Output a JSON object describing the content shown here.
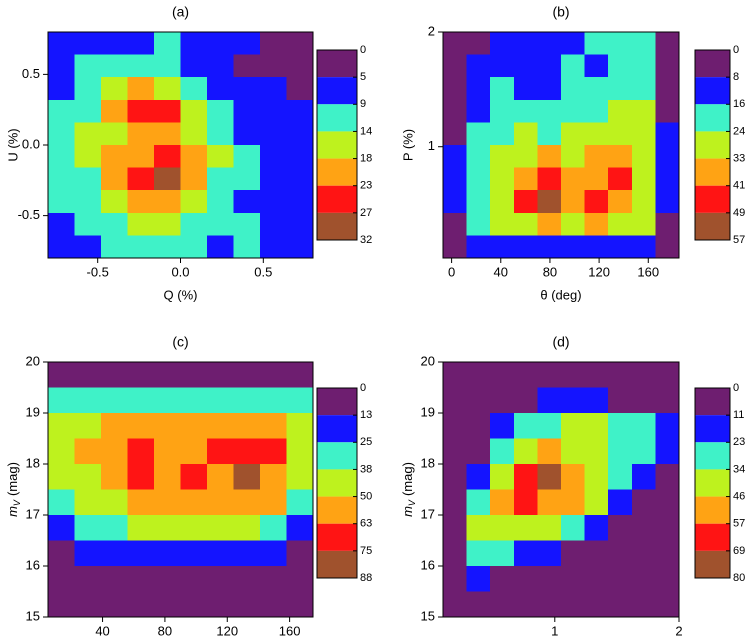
{
  "chart_data": [
    {
      "type": "contour",
      "title": "(a)",
      "x_label": "Q (%)",
      "y_label": "U (%)",
      "xlim": [
        -0.8,
        0.8
      ],
      "ylim": [
        -0.8,
        0.8
      ],
      "xticks": [
        -0.5,
        {
          "value": 0,
          "label": "0.0"
        },
        0.5
      ],
      "yticks": [
        -0.5,
        {
          "value": 0,
          "label": "0.0"
        },
        0.5
      ],
      "levels": [
        0,
        5,
        9,
        14,
        18,
        23,
        27,
        32
      ],
      "colors": [
        "#6e1e70",
        "#1414ff",
        "#3ff2c8",
        "#bef21e",
        "#ffa314",
        "#ff1414",
        "#a0522d"
      ],
      "z": [
        [
          7,
          8,
          7,
          8,
          10,
          7,
          6,
          6,
          2,
          2
        ],
        [
          8,
          10,
          12,
          13,
          10,
          8,
          6,
          4,
          3,
          2
        ],
        [
          8,
          11,
          15,
          19,
          16,
          12,
          8,
          7,
          5,
          3
        ],
        [
          9,
          13,
          19,
          24,
          23,
          15,
          10,
          8,
          7,
          5
        ],
        [
          10,
          14,
          17,
          20,
          19,
          15,
          11,
          8,
          7,
          6
        ],
        [
          10,
          14,
          19,
          22,
          25,
          20,
          14,
          9,
          7,
          6
        ],
        [
          9,
          13,
          18,
          23,
          28,
          20,
          13,
          9,
          7,
          6
        ],
        [
          9,
          12,
          15,
          19,
          19,
          16,
          11,
          8,
          7,
          6
        ],
        [
          7,
          10,
          12,
          14,
          15,
          13,
          11,
          10,
          8,
          6
        ],
        [
          6,
          8,
          9,
          10,
          10,
          9,
          8,
          11,
          8,
          6
        ]
      ]
    },
    {
      "type": "contour",
      "title": "(b)",
      "x_label": "θ (deg)",
      "y_label": "P (%)",
      "xlim": [
        -7,
        185
      ],
      "ylim": [
        0.03,
        2
      ],
      "xticks": [
        0,
        40,
        80,
        120,
        160
      ],
      "yticks": [
        1,
        2
      ],
      "levels": [
        0,
        8,
        16,
        24,
        33,
        41,
        49,
        57
      ],
      "colors": [
        "#6e1e70",
        "#1414ff",
        "#3ff2c8",
        "#bef21e",
        "#ffa314",
        "#ff1414",
        "#a0522d"
      ],
      "z": [
        [
          3,
          6,
          10,
          12,
          15,
          14,
          18,
          20,
          18,
          4
        ],
        [
          4,
          10,
          14,
          12,
          14,
          16,
          15,
          18,
          20,
          6
        ],
        [
          6,
          12,
          18,
          14,
          14,
          16,
          18,
          22,
          22,
          6
        ],
        [
          6,
          15,
          20,
          19,
          18,
          18,
          20,
          26,
          24,
          7
        ],
        [
          7,
          18,
          22,
          24,
          22,
          24,
          24,
          30,
          26,
          8
        ],
        [
          8,
          18,
          24,
          30,
          34,
          32,
          34,
          34,
          28,
          8
        ],
        [
          8,
          20,
          26,
          38,
          44,
          36,
          40,
          44,
          30,
          8
        ],
        [
          8,
          20,
          28,
          42,
          50,
          34,
          46,
          40,
          28,
          8
        ],
        [
          7,
          18,
          24,
          30,
          34,
          28,
          34,
          30,
          24,
          7
        ],
        [
          5,
          10,
          12,
          12,
          12,
          12,
          12,
          12,
          10,
          5
        ]
      ]
    },
    {
      "type": "contour",
      "title": "(c)",
      "x_label": "θ (deg)",
      "y_label_main": "m",
      "y_label_sub": "V",
      "y_label_rest": "(mag)",
      "xlim": [
        5,
        175
      ],
      "ylim": [
        15,
        20
      ],
      "xticks": [
        40,
        80,
        120,
        160
      ],
      "yticks": [
        15,
        16,
        17,
        18,
        19,
        20
      ],
      "levels": [
        0,
        13,
        25,
        38,
        50,
        63,
        75,
        88
      ],
      "colors": [
        "#6e1e70",
        "#1414ff",
        "#3ff2c8",
        "#bef21e",
        "#ffa314",
        "#ff1414",
        "#a0522d"
      ],
      "z": [
        [
          8,
          10,
          10,
          10,
          10,
          10,
          10,
          10,
          10,
          8
        ],
        [
          30,
          32,
          35,
          36,
          36,
          36,
          36,
          34,
          32,
          28
        ],
        [
          38,
          45,
          52,
          55,
          52,
          52,
          55,
          56,
          52,
          40
        ],
        [
          40,
          50,
          60,
          70,
          58,
          60,
          64,
          72,
          66,
          44
        ],
        [
          38,
          48,
          58,
          72,
          55,
          66,
          60,
          80,
          62,
          42
        ],
        [
          32,
          40,
          48,
          62,
          52,
          55,
          52,
          56,
          50,
          36
        ],
        [
          22,
          28,
          36,
          42,
          40,
          40,
          40,
          38,
          34,
          24
        ],
        [
          12,
          18,
          20,
          22,
          18,
          20,
          20,
          18,
          16,
          12
        ],
        [
          5,
          8,
          8,
          6,
          4,
          6,
          6,
          5,
          4,
          4
        ],
        [
          2,
          2,
          2,
          2,
          2,
          2,
          2,
          2,
          2,
          2
        ]
      ]
    },
    {
      "type": "contour",
      "title": "(d)",
      "x_label": "P (%)",
      "y_label_main": "m",
      "y_label_sub": "V",
      "y_label_rest": "(mag)",
      "xlim": [
        0.1,
        2
      ],
      "ylim": [
        15,
        20
      ],
      "xticks": [
        1,
        2
      ],
      "yticks": [
        15,
        16,
        17,
        18,
        19,
        20
      ],
      "levels": [
        0,
        11,
        23,
        34,
        46,
        57,
        69,
        80
      ],
      "colors": [
        "#6e1e70",
        "#1414ff",
        "#3ff2c8",
        "#bef21e",
        "#ffa314",
        "#ff1414",
        "#a0522d"
      ],
      "z": [
        [
          2,
          2,
          2,
          2,
          2,
          2,
          2,
          2,
          2,
          2
        ],
        [
          2,
          2,
          4,
          8,
          14,
          18,
          14,
          10,
          6,
          4
        ],
        [
          2,
          4,
          12,
          24,
          30,
          34,
          34,
          30,
          26,
          20
        ],
        [
          4,
          10,
          28,
          40,
          48,
          44,
          38,
          30,
          24,
          14
        ],
        [
          6,
          20,
          42,
          60,
          72,
          56,
          44,
          30,
          18,
          8
        ],
        [
          8,
          30,
          50,
          62,
          56,
          48,
          34,
          20,
          10,
          4
        ],
        [
          10,
          34,
          44,
          40,
          34,
          26,
          16,
          8,
          4,
          2
        ],
        [
          10,
          24,
          28,
          22,
          16,
          10,
          4,
          2,
          2,
          2
        ],
        [
          4,
          12,
          10,
          6,
          4,
          2,
          2,
          2,
          2,
          2
        ],
        [
          2,
          4,
          2,
          2,
          2,
          2,
          2,
          2,
          2,
          2
        ]
      ]
    }
  ]
}
